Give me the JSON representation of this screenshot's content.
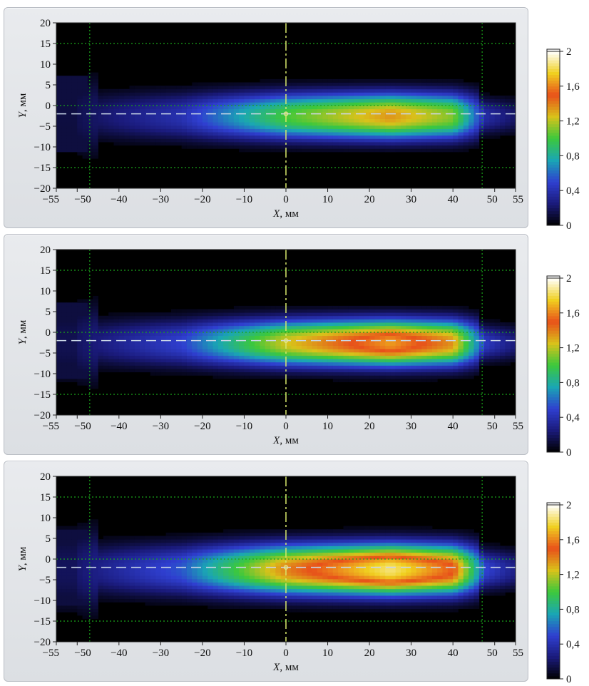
{
  "chart_data": [
    {
      "type": "heatmap",
      "panel": 1,
      "xlabel": "X, мм",
      "ylabel": "Y, мм",
      "xlim": [
        -55,
        55
      ],
      "ylim": [
        -20,
        20
      ],
      "xticks": [
        -55,
        -50,
        -40,
        -30,
        -20,
        -10,
        0,
        10,
        20,
        30,
        40,
        50,
        55
      ],
      "xtick_labels": [
        "−55",
        "−50",
        "−40",
        "−30",
        "−20",
        "−10",
        "0",
        "10",
        "20",
        "30",
        "40",
        "50",
        "55"
      ],
      "yticks": [
        20,
        15,
        10,
        5,
        0,
        -5,
        -10,
        -15,
        -20
      ],
      "ytick_labels": [
        "20",
        "15",
        "10",
        "5",
        "0",
        "−5",
        "−10",
        "−15",
        "−20"
      ],
      "guide_lines": {
        "x": [
          -47,
          47
        ],
        "y": [
          15,
          0,
          -15
        ]
      },
      "center": {
        "x": 0,
        "y": -2
      },
      "beam": {
        "peak_value": 1.35,
        "peak_x": 25,
        "center_y": -2.5,
        "half_width_y": 5.5
      },
      "colorbar": {
        "min": 0,
        "max": 2,
        "ticks": [
          "2",
          "1,6",
          "1,2",
          "0,8",
          "0,4",
          "0"
        ]
      }
    },
    {
      "type": "heatmap",
      "panel": 2,
      "xlabel": "X, мм",
      "ylabel": "Y, мм",
      "xlim": [
        -55,
        55
      ],
      "ylim": [
        -20,
        20
      ],
      "xticks": [
        -55,
        -50,
        -40,
        -30,
        -20,
        -10,
        0,
        10,
        20,
        30,
        40,
        50,
        55
      ],
      "xtick_labels": [
        "−55",
        "−50",
        "−40",
        "−30",
        "−20",
        "−10",
        "0",
        "10",
        "20",
        "30",
        "40",
        "50",
        "55"
      ],
      "yticks": [
        20,
        15,
        10,
        5,
        0,
        -5,
        -10,
        -15,
        -20
      ],
      "ytick_labels": [
        "20",
        "15",
        "10",
        "5",
        "0",
        "−5",
        "−10",
        "−15",
        "−20"
      ],
      "guide_lines": {
        "x": [
          -47,
          47
        ],
        "y": [
          15,
          0,
          -15
        ]
      },
      "center": {
        "x": 0,
        "y": -2
      },
      "beam": {
        "peak_value": 1.65,
        "peak_x": 25,
        "center_y": -2.5,
        "half_width_y": 5.5
      },
      "colorbar": {
        "min": 0,
        "max": 2,
        "ticks": [
          "2",
          "1,6",
          "1,2",
          "0,8",
          "0,4",
          "0"
        ]
      }
    },
    {
      "type": "heatmap",
      "panel": 3,
      "xlabel": "X, мм",
      "ylabel": "Y, мм",
      "xlim": [
        -55,
        55
      ],
      "ylim": [
        -20,
        20
      ],
      "xticks": [
        -55,
        -50,
        -40,
        -30,
        -20,
        -10,
        0,
        10,
        20,
        30,
        40,
        50,
        55
      ],
      "xtick_labels": [
        "−55",
        "−50",
        "−40",
        "−30",
        "−20",
        "−10",
        "0",
        "10",
        "20",
        "30",
        "40",
        "50",
        "55"
      ],
      "yticks": [
        20,
        15,
        10,
        5,
        0,
        -5,
        -10,
        -15,
        -20
      ],
      "ytick_labels": [
        "20",
        "15",
        "10",
        "5",
        "0",
        "−5",
        "−10",
        "−15",
        "−20"
      ],
      "guide_lines": {
        "x": [
          -47,
          47
        ],
        "y": [
          15,
          0,
          -15
        ]
      },
      "center": {
        "x": 0,
        "y": -2
      },
      "beam": {
        "peak_value": 1.85,
        "peak_x": 25,
        "center_y": -2.5,
        "half_width_y": 6
      },
      "colorbar": {
        "min": 0,
        "max": 2,
        "ticks": [
          "2",
          "1,6",
          "1,2",
          "0,8",
          "0,4",
          "0"
        ]
      }
    }
  ],
  "colors": {
    "background": "#000000",
    "guide_line": "#19a319",
    "center_line_horizontal": "#c9d6e6",
    "center_line_vertical": "#d7e86a",
    "colormap": [
      "#000000",
      "#1a1a7a",
      "#2f3fd0",
      "#1aa6b4",
      "#3cc83c",
      "#d9c21a",
      "#e8501a",
      "#f0d020",
      "#ffffff"
    ]
  }
}
